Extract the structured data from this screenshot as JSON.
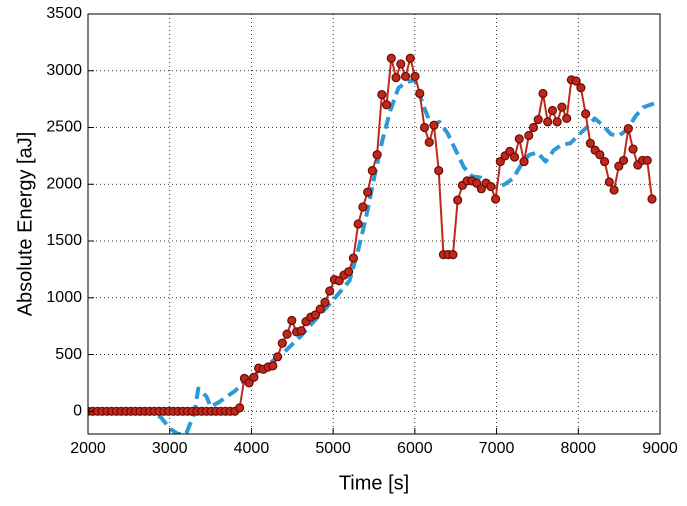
{
  "chart_data": {
    "type": "line",
    "xlabel": "Time  [s]",
    "ylabel": "Absolute Energy  [aJ]",
    "xlim": [
      2000,
      9000
    ],
    "ylim": [
      -200,
      3500
    ],
    "xticks": [
      2000,
      3000,
      4000,
      5000,
      6000,
      7000,
      8000,
      9000
    ],
    "yticks": [
      0,
      500,
      1000,
      1500,
      2000,
      2500,
      3000,
      3500
    ],
    "grid": true,
    "series": [
      {
        "color": "#2b9ad6",
        "dashed": true,
        "markers": false,
        "x": [
          2000,
          2800,
          2900,
          3000,
          3100,
          3200,
          3300,
          3350,
          3450,
          3500,
          3600,
          3700,
          3800,
          3900,
          4000,
          4200,
          4400,
          4600,
          4800,
          5000,
          5200,
          5300,
          5400,
          5500,
          5600,
          5700,
          5800,
          5900,
          6000,
          6100,
          6200,
          6300,
          6400,
          6500,
          6600,
          6700,
          6800,
          6900,
          7000,
          7100,
          7200,
          7300,
          7400,
          7500,
          7600,
          7700,
          7800,
          7900,
          8000,
          8100,
          8200,
          8300,
          8400,
          8500,
          8600,
          8700,
          8800,
          9000
        ],
        "values": [
          0,
          0,
          -60,
          -150,
          -200,
          -200,
          -20,
          200,
          130,
          40,
          80,
          130,
          180,
          250,
          310,
          410,
          520,
          660,
          820,
          980,
          1150,
          1400,
          1700,
          2050,
          2380,
          2650,
          2850,
          2900,
          2920,
          2700,
          2520,
          2550,
          2450,
          2300,
          2150,
          2070,
          2060,
          2000,
          1970,
          2000,
          2050,
          2170,
          2260,
          2280,
          2200,
          2300,
          2350,
          2360,
          2430,
          2500,
          2580,
          2520,
          2440,
          2430,
          2480,
          2600,
          2680,
          2730
        ]
      },
      {
        "color": "#c0281c",
        "dashed": false,
        "markers": true,
        "x": [
          2000,
          2058,
          2116,
          2174,
          2232,
          2290,
          2348,
          2406,
          2464,
          2522,
          2580,
          2638,
          2696,
          2754,
          2812,
          2870,
          2928,
          2986,
          3044,
          3102,
          3160,
          3218,
          3276,
          3334,
          3392,
          3450,
          3508,
          3566,
          3624,
          3682,
          3740,
          3798,
          3856,
          3914,
          3972,
          4030,
          4088,
          4146,
          4204,
          4262,
          4320,
          4378,
          4436,
          4494,
          4552,
          4610,
          4668,
          4726,
          4784,
          4842,
          4900,
          4958,
          5016,
          5074,
          5132,
          5190,
          5248,
          5306,
          5364,
          5422,
          5480,
          5538,
          5596,
          5654,
          5712,
          5770,
          5828,
          5886,
          5944,
          6002,
          6060,
          6118,
          6176,
          6234,
          6292,
          6350,
          6408,
          6466,
          6524,
          6582,
          6640,
          6698,
          6756,
          6814,
          6872,
          6930,
          6988,
          7046,
          7104,
          7162,
          7220,
          7278,
          7336,
          7394,
          7452,
          7510,
          7568,
          7626,
          7684,
          7742,
          7800,
          7858,
          7916,
          7974,
          8032,
          8090,
          8148,
          8206,
          8264,
          8322,
          8380,
          8438,
          8496,
          8554,
          8612,
          8670,
          8728,
          8786,
          8844,
          8902
        ],
        "values": [
          0,
          0,
          0,
          0,
          0,
          0,
          0,
          0,
          0,
          0,
          0,
          0,
          0,
          0,
          0,
          0,
          0,
          0,
          0,
          0,
          0,
          0,
          0,
          0,
          0,
          0,
          0,
          0,
          0,
          0,
          0,
          0,
          30,
          290,
          250,
          300,
          380,
          370,
          390,
          400,
          480,
          600,
          680,
          800,
          700,
          710,
          790,
          830,
          850,
          900,
          960,
          1060,
          1160,
          1150,
          1200,
          1230,
          1350,
          1650,
          1800,
          1930,
          2120,
          2260,
          2790,
          2700,
          3110,
          2940,
          3060,
          2950,
          3110,
          2950,
          2800,
          2500,
          2370,
          2520,
          2120,
          1380,
          1380,
          1380,
          1860,
          1990,
          2030,
          2030,
          2010,
          1960,
          2010,
          1980,
          1870,
          2200,
          2250,
          2290,
          2240,
          2400,
          2200,
          2430,
          2500,
          2570,
          2800,
          2550,
          2650,
          2550,
          2680,
          2580,
          2920,
          2910,
          2850,
          2620,
          2360,
          2300,
          2260,
          2200,
          2020,
          1950,
          2160,
          2210,
          2490,
          2310,
          2170,
          2210,
          2210,
          1870
        ]
      }
    ]
  }
}
